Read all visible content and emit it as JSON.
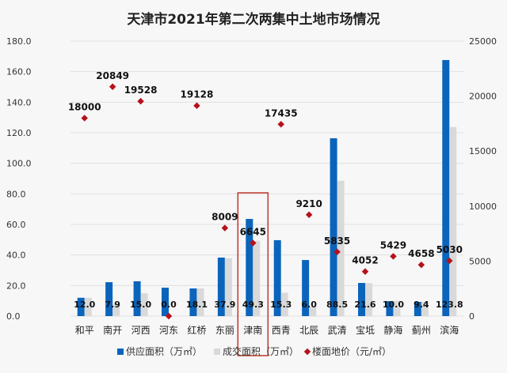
{
  "chart_data": {
    "type": "bar",
    "title": "天津市2021年第二次两集中土地市场情况",
    "categories": [
      "和平",
      "南开",
      "河西",
      "河东",
      "红桥",
      "东丽",
      "津南",
      "西青",
      "北辰",
      "武清",
      "宝坻",
      "静海",
      "蓟州",
      "滨海"
    ],
    "series": [
      {
        "name": "供应面积（万㎡）",
        "axis": "left",
        "type": "bar",
        "color": "#0a64bc",
        "values": [
          12.0,
          22.2,
          22.8,
          18.6,
          18.1,
          38.3,
          63.6,
          49.7,
          36.7,
          116.4,
          21.7,
          9.8,
          9.3,
          167.6
        ]
      },
      {
        "name": "成交面积（万㎡）",
        "axis": "left",
        "type": "bar",
        "color": "#d9d9d9",
        "values": [
          12.0,
          7.9,
          15.0,
          0.0,
          18.1,
          37.9,
          49.3,
          15.3,
          6.0,
          88.5,
          21.6,
          10.0,
          9.4,
          123.8
        ]
      },
      {
        "name": "楼面地价（元/㎡）",
        "axis": "right",
        "type": "scatter",
        "color": "#b5121b",
        "values": [
          18000,
          20849,
          19528,
          0,
          19128,
          8009,
          6645,
          17435,
          9210,
          5835,
          4052,
          5429,
          4658,
          5030
        ]
      }
    ],
    "deal_labels": [
      "12.0",
      "7.9",
      "15.0",
      "0.0",
      "18.1",
      "37.9",
      "49.3",
      "15.3",
      "6.0",
      "88.5",
      "21.6",
      "10.0",
      "9.4",
      "123.8"
    ],
    "price_labels": [
      "18000",
      "20849",
      "19528",
      "",
      "19128",
      "8009",
      "6645",
      "17435",
      "9210",
      "5835",
      "4052",
      "5429",
      "4658",
      "5030"
    ],
    "left_ticks": [
      "0.0",
      "20.0",
      "40.0",
      "60.0",
      "80.0",
      "100.0",
      "120.0",
      "140.0",
      "160.0",
      "180.0"
    ],
    "right_ticks": [
      "0",
      "5000",
      "10000",
      "15000",
      "20000",
      "25000"
    ],
    "ylim": [
      0,
      180
    ],
    "y2lim": [
      0,
      25000
    ],
    "grid": true,
    "legend": "bottom",
    "highlight": "津南",
    "highlight_color": "#c0392b"
  }
}
